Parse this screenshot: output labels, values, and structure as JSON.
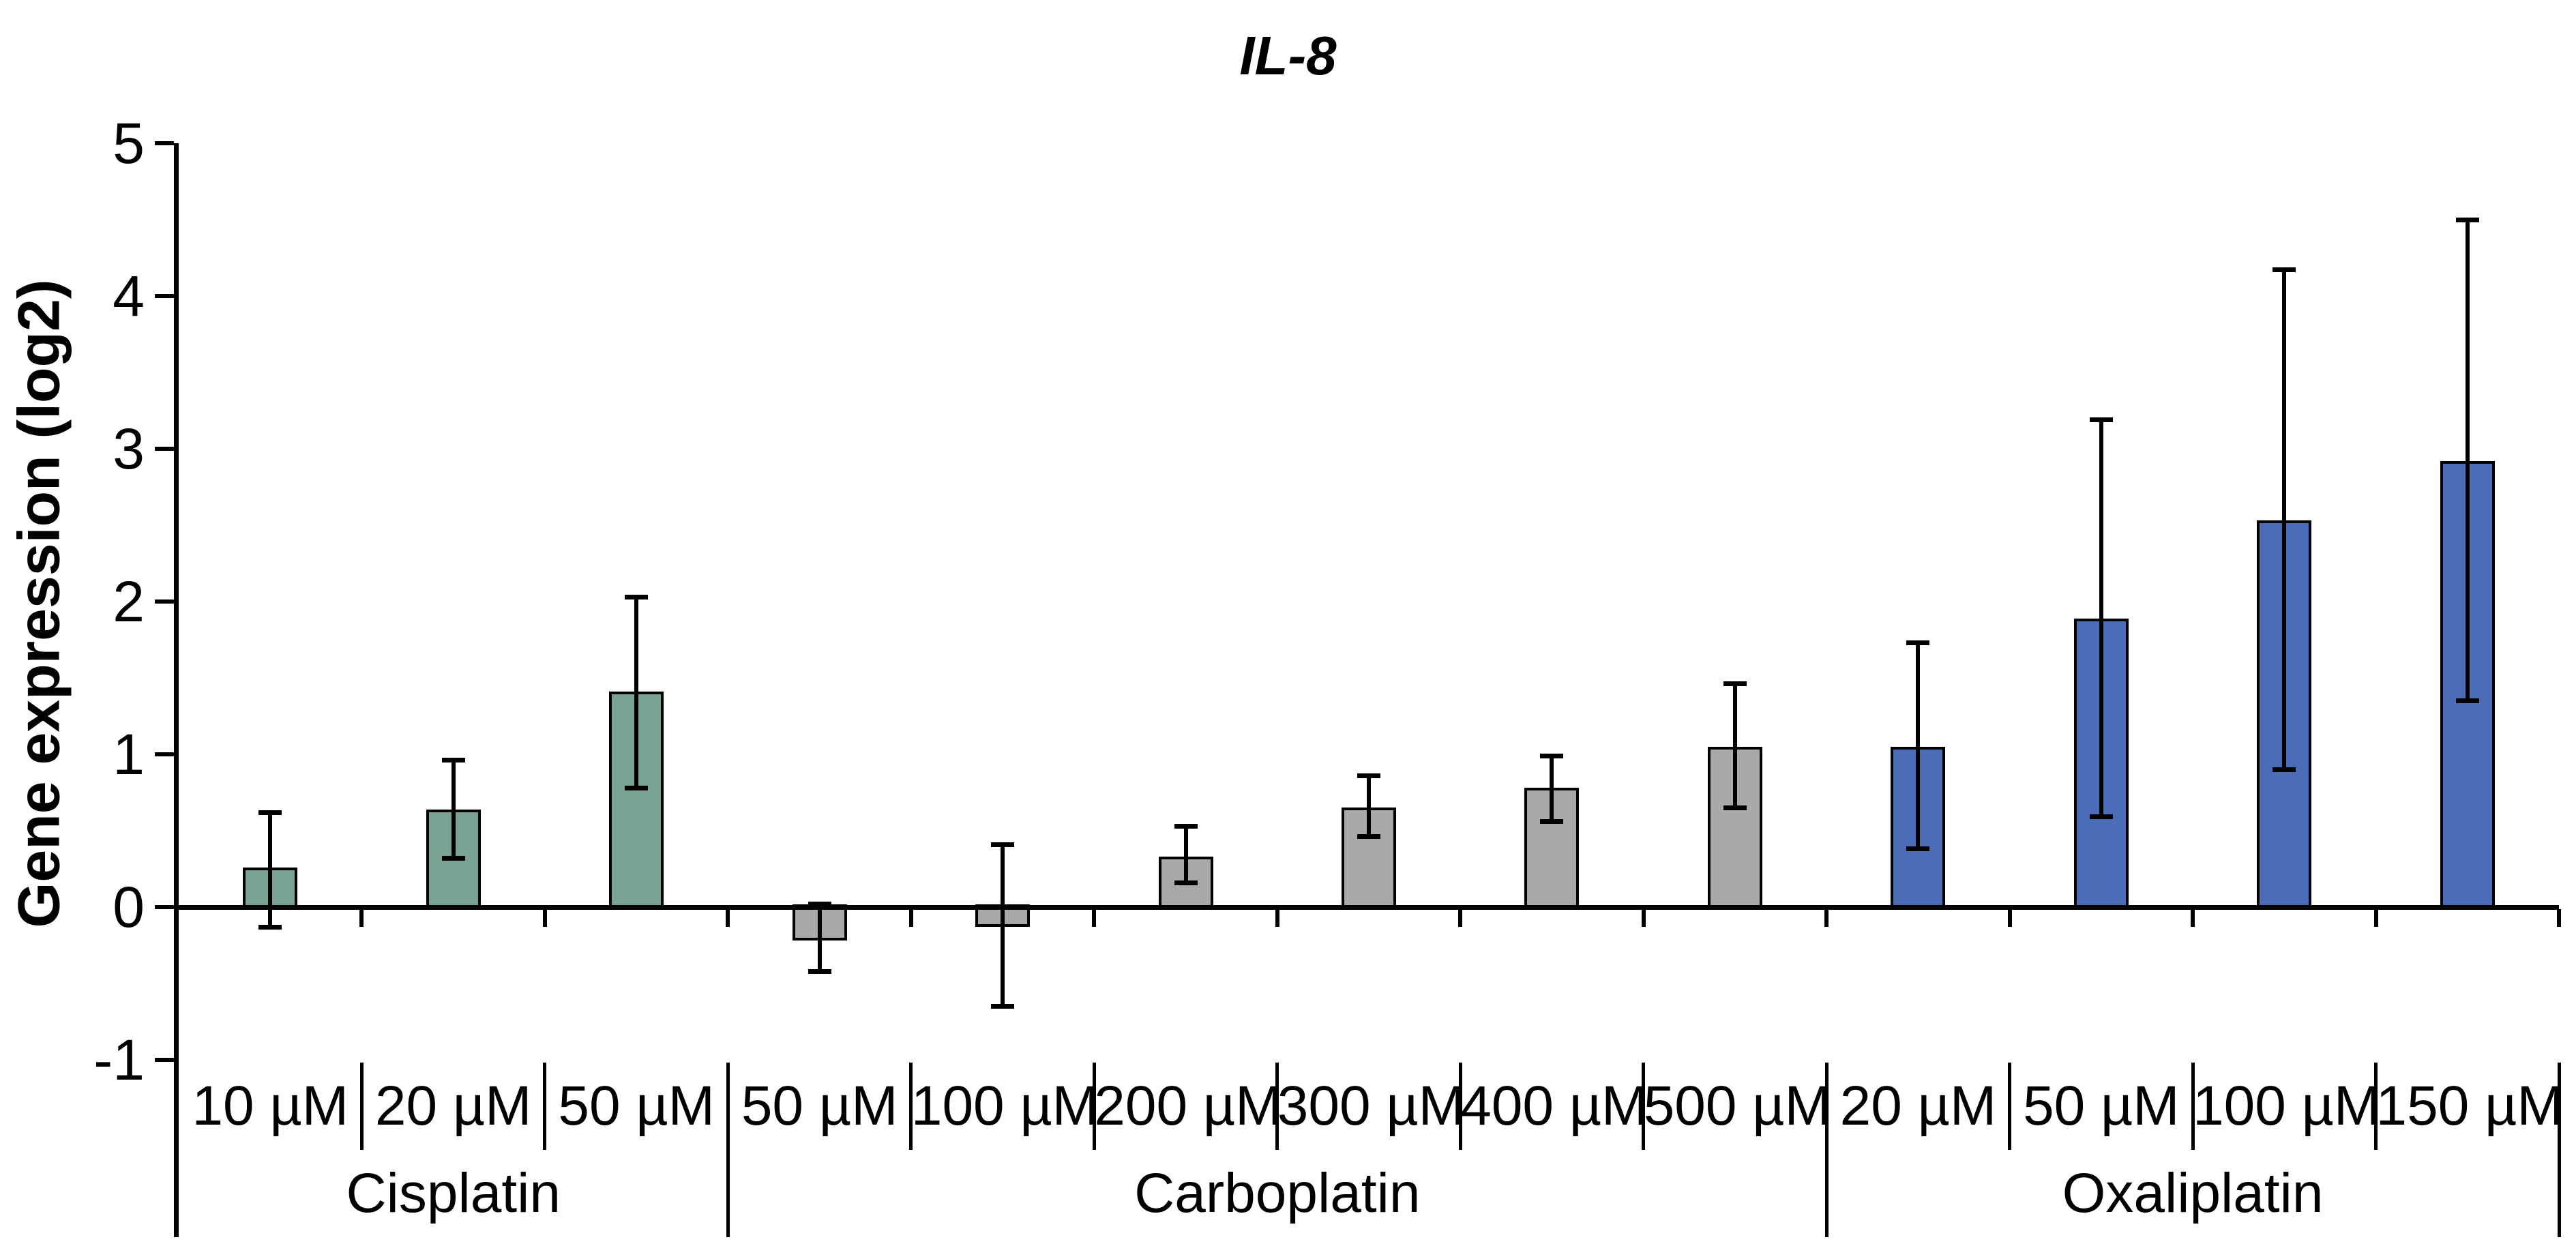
{
  "chart_data": {
    "type": "bar",
    "title": "IL-8",
    "title_style": "bold-italic",
    "ylabel": "Gene expression (log2)",
    "xlabel": "",
    "ylim": [
      -1,
      5
    ],
    "y_ticks": [
      5,
      4,
      3,
      2,
      1,
      0,
      -1
    ],
    "grid": false,
    "legend": "none",
    "error_bars": "both",
    "groups": [
      {
        "name": "Cisplatin",
        "color": "#7AA395",
        "bars": [
          {
            "label": "10 µM",
            "value": 0.26,
            "whisker_low": -0.13,
            "whisker_high": 0.62
          },
          {
            "label": "20 µM",
            "value": 0.64,
            "whisker_low": 0.32,
            "whisker_high": 0.96
          },
          {
            "label": "50 µM",
            "value": 1.41,
            "whisker_low": 0.78,
            "whisker_high": 2.03
          }
        ]
      },
      {
        "name": "Carboplatin",
        "color": "#A9A9A9",
        "bars": [
          {
            "label": "50 µM",
            "value": -0.22,
            "whisker_low": -0.42,
            "whisker_high": 0.02
          },
          {
            "label": "100 µM",
            "value": -0.13,
            "whisker_low": -0.65,
            "whisker_high": 0.41
          },
          {
            "label": "200 µM",
            "value": 0.33,
            "whisker_low": 0.16,
            "whisker_high": 0.53
          },
          {
            "label": "300 µM",
            "value": 0.65,
            "whisker_low": 0.46,
            "whisker_high": 0.86
          },
          {
            "label": "400 µM",
            "value": 0.78,
            "whisker_low": 0.56,
            "whisker_high": 0.99
          },
          {
            "label": "500 µM",
            "value": 1.05,
            "whisker_low": 0.65,
            "whisker_high": 1.46
          }
        ]
      },
      {
        "name": "Oxaliplatin",
        "color": "#4A6DB5",
        "bars": [
          {
            "label": "20 µM",
            "value": 1.05,
            "whisker_low": 0.38,
            "whisker_high": 1.73
          },
          {
            "label": "50 µM",
            "value": 1.89,
            "whisker_low": 0.59,
            "whisker_high": 3.19
          },
          {
            "label": "100 µM",
            "value": 2.53,
            "whisker_low": 0.9,
            "whisker_high": 4.17
          },
          {
            "label": "150 µM",
            "value": 2.92,
            "whisker_low": 1.35,
            "whisker_high": 4.5
          }
        ]
      }
    ]
  },
  "colors": {
    "bar_border": "#000000",
    "axis": "#000000",
    "error_bar": "#000000",
    "text": "#000000",
    "background": "#FFFFFF"
  }
}
